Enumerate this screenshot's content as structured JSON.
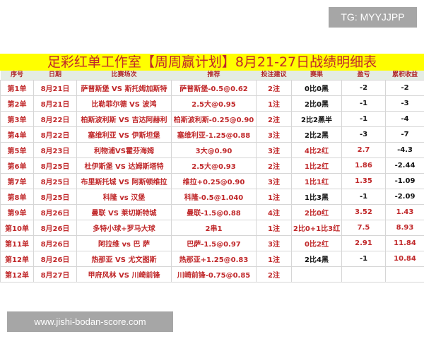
{
  "watermark_top": "TG: MYYJJPP",
  "watermark_bottom": "www.jishi-bodan-score.com",
  "title": "足彩红单工作室【周周赢计划】8月21-27日战绩明细表",
  "headers": [
    "序号",
    "日期",
    "比赛场次",
    "推荐",
    "投注建议",
    "赛果",
    "盈亏",
    "累积收益"
  ],
  "colors": {
    "win": "#c0282a",
    "loss": "#111111",
    "title_bg": "#ffff00"
  },
  "rows": [
    [
      "第1单",
      "8月21日",
      "萨普斯堡 VS 斯托姆加斯特",
      "萨普斯堡-0.5@0.62",
      "2注",
      "0比0黑",
      "-2",
      "-2"
    ],
    [
      "第2单",
      "8月21日",
      "比勒菲尔德 VS 波鸿",
      "2.5大@0.95",
      "1注",
      "2比0黑",
      "-1",
      "-3"
    ],
    [
      "第3单",
      "8月22日",
      "柏斯波利斯 VS 吉达阿赫利",
      "柏斯波利斯-0.25@0.90",
      "2注",
      "2比2黑半",
      "-1",
      "-4"
    ],
    [
      "第4单",
      "8月22日",
      "塞维利亚 VS 伊斯坦堡",
      "塞维利亚-1.25@0.88",
      "3注",
      "2比2黑",
      "-3",
      "-7"
    ],
    [
      "第5单",
      "8月23日",
      "利物浦VS霍芬海姆",
      "3大@0.90",
      "3注",
      "4比2红",
      "2.7",
      "-4.3"
    ],
    [
      "第6单",
      "8月25日",
      "杜伊斯堡  VS  达姆斯塔特",
      "2.5大@0.93",
      "2注",
      "1比2红",
      "1.86",
      "-2.44"
    ],
    [
      "第7单",
      "8月25日",
      "布里斯托城 VS 阿斯顿维拉",
      "维拉+0.25@0.90",
      "3注",
      "1比1红",
      "1.35",
      "-1.09"
    ],
    [
      "第8单",
      "8月25日",
      "科隆 vs 汉堡",
      "科隆-0.5@1.040",
      "1注",
      "1比3黑",
      "-1",
      "-2.09"
    ],
    [
      "第9单",
      "8月26日",
      "曼联 VS 莱切斯特城",
      "曼联-1.5@0.88",
      "4注",
      "2比0红",
      "3.52",
      "1.43"
    ],
    [
      "第10单",
      "8月26日",
      "多特小球+罗马大球",
      "2串1",
      "1注",
      "2比0+1比3红",
      "7.5",
      "8.93"
    ],
    [
      "第11单",
      "8月26日",
      "阿拉维 vs 巴 萨",
      "巴萨-1.5@0.97",
      "3注",
      "0比2红",
      "2.91",
      "11.84"
    ],
    [
      "第12单",
      "8月26日",
      "热那亚 VS 尤文图斯",
      "热那亚+1.25@0.83",
      "1注",
      "2比4黑",
      "-1",
      "10.84"
    ],
    [
      "第12单",
      "8月27日",
      "甲府风林 VS 川崎前锋",
      "川崎前锋-0.75@0.85",
      "2注",
      "",
      "",
      ""
    ]
  ]
}
